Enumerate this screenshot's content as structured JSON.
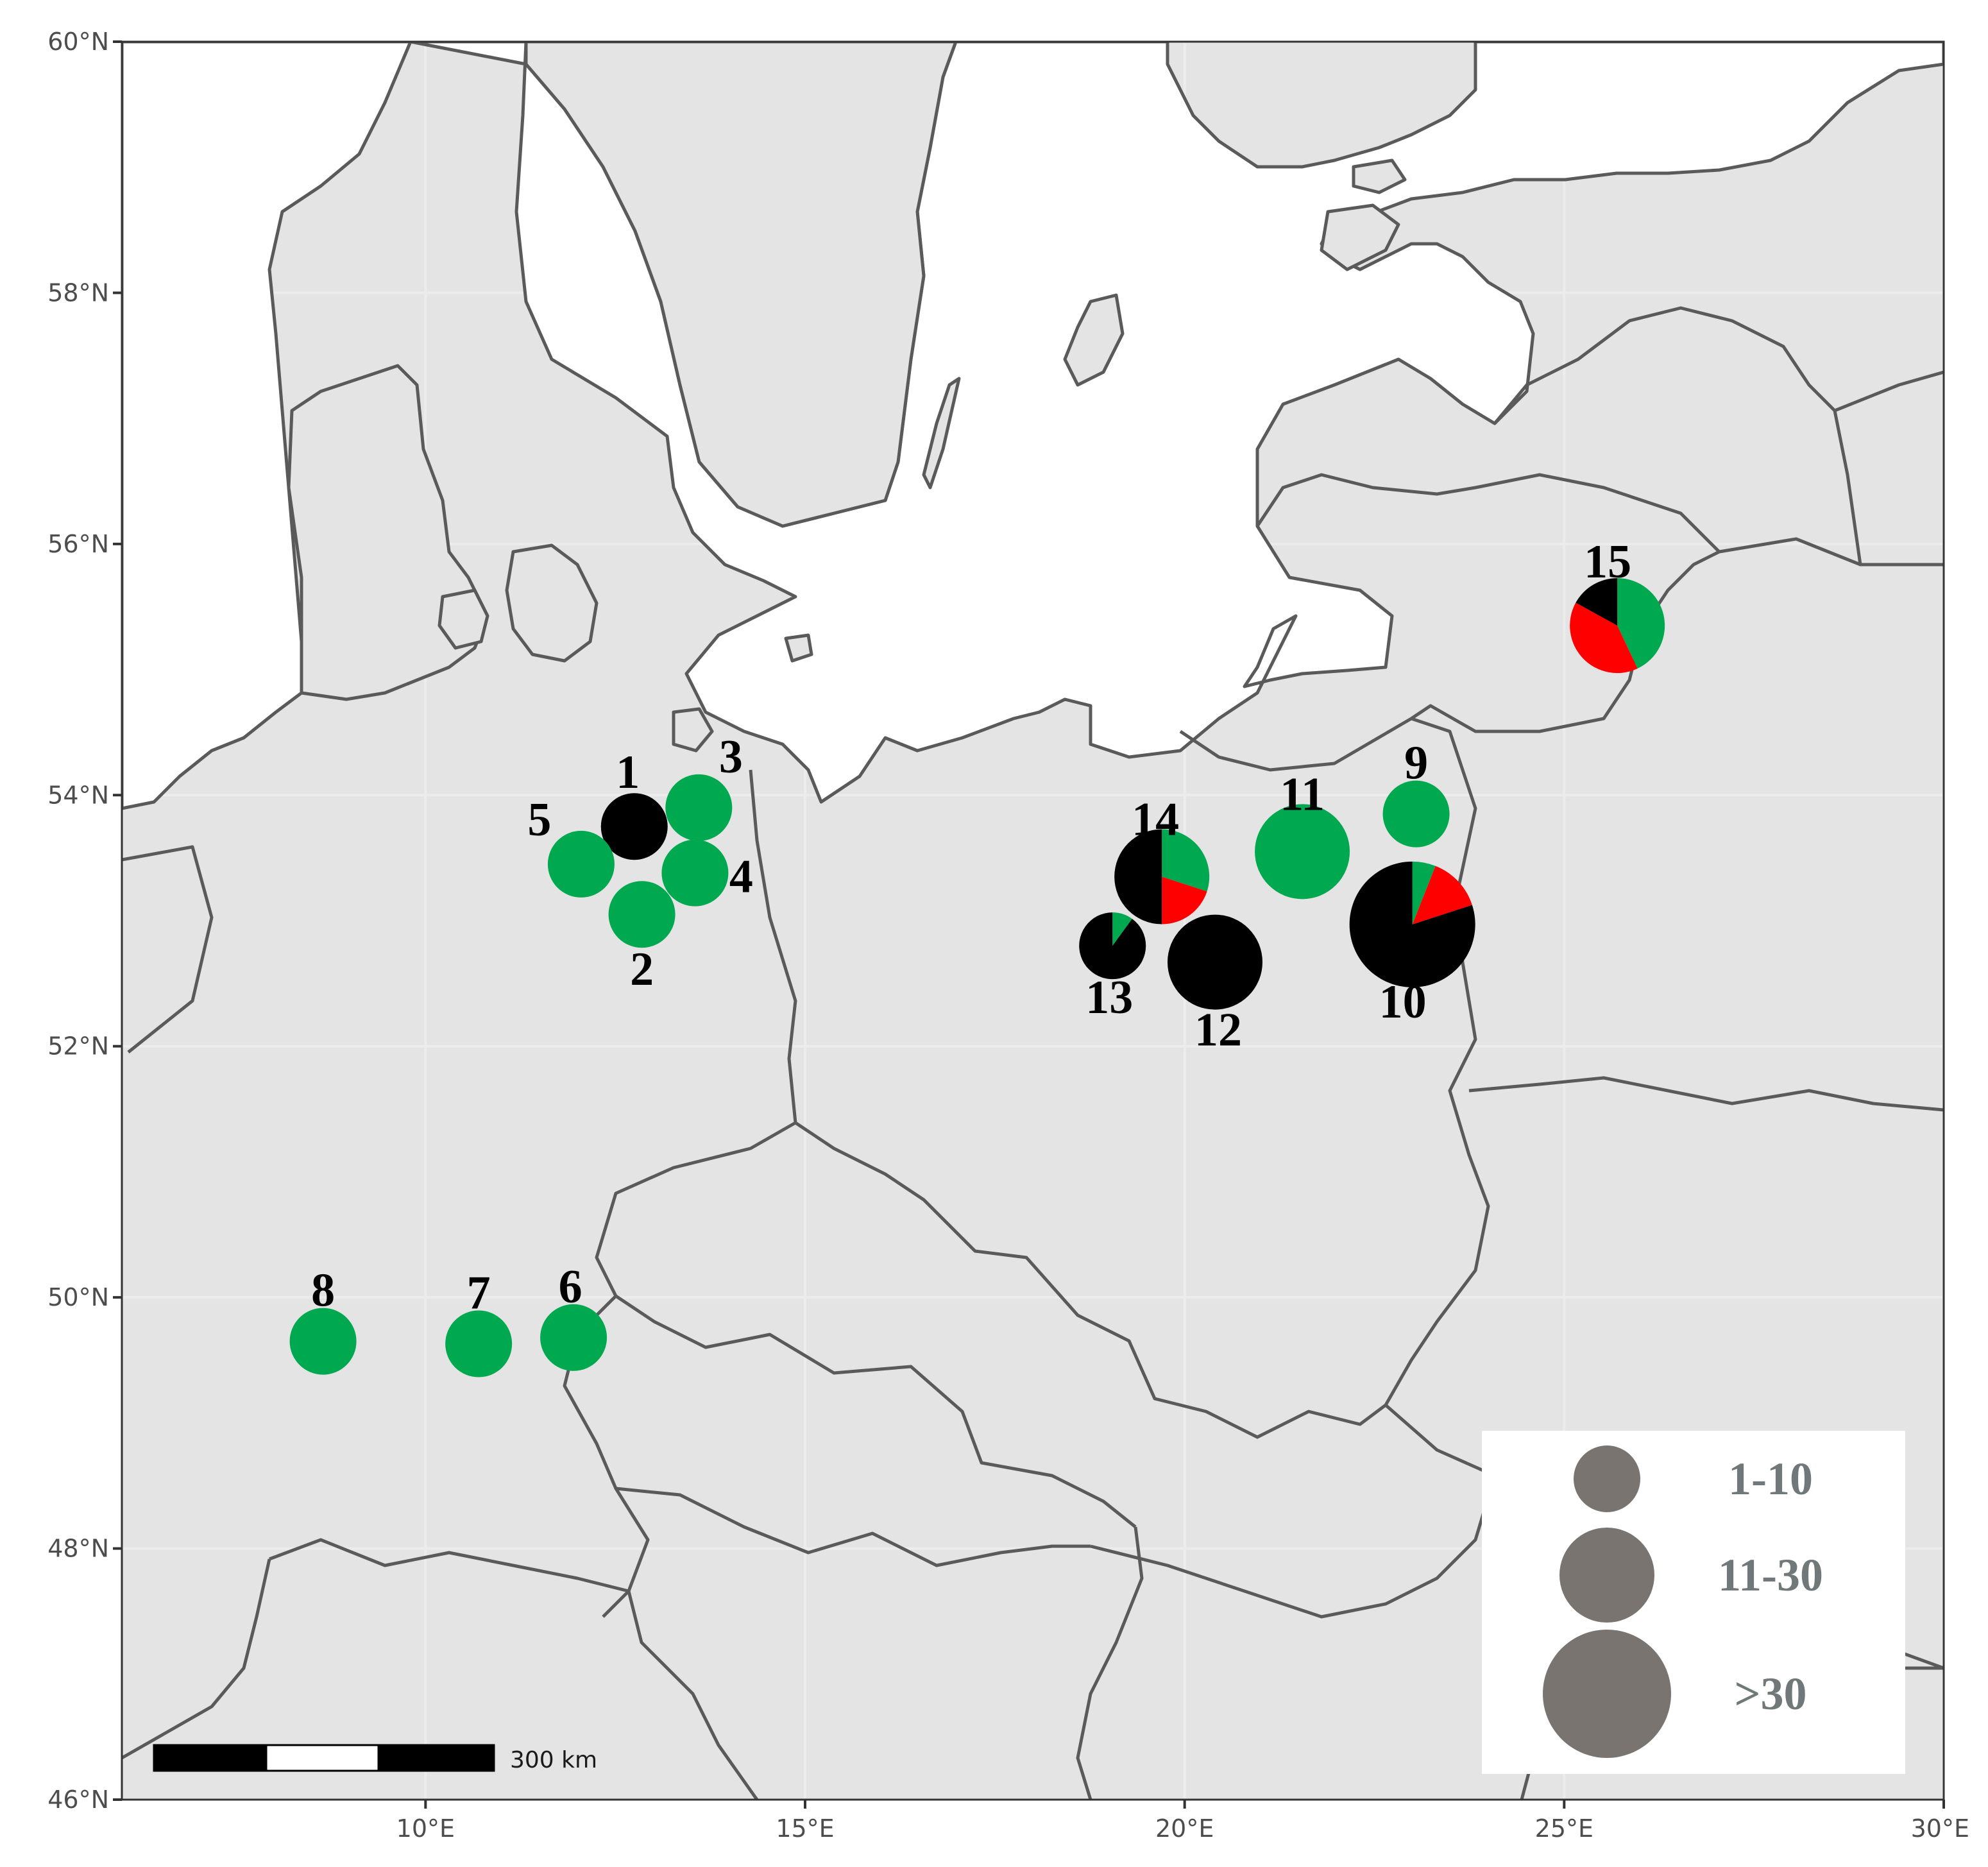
{
  "map": {
    "lat_ticks": [
      "60°N",
      "58°N",
      "56°N",
      "54°N",
      "52°N",
      "50°N",
      "48°N",
      "46°N"
    ],
    "lon_ticks": [
      "10°E",
      "15°E",
      "20°E",
      "25°E",
      "30°E"
    ],
    "lat_range": [
      46,
      60
    ],
    "lon_range": [
      6,
      30
    ],
    "grid": true,
    "colors": {
      "land": "#e4e4e4",
      "sea": "#ffffff",
      "border": "#5a5a5a",
      "grid": "#ebebeb"
    }
  },
  "categories": {
    "green": "#00a84f",
    "red": "#ff0000",
    "black": "#000000"
  },
  "sites": [
    {
      "label": "1",
      "lon": 12.75,
      "lat": 53.75,
      "size_class": "1-10",
      "slices": [
        {
          "color": "black",
          "fraction": 1.0
        }
      ]
    },
    {
      "label": "2",
      "lon": 12.85,
      "lat": 53.05,
      "size_class": "1-10",
      "slices": [
        {
          "color": "green",
          "fraction": 1.0
        }
      ]
    },
    {
      "label": "3",
      "lon": 13.6,
      "lat": 53.9,
      "size_class": "1-10",
      "slices": [
        {
          "color": "green",
          "fraction": 1.0
        }
      ]
    },
    {
      "label": "4",
      "lon": 13.55,
      "lat": 53.38,
      "size_class": "1-10",
      "slices": [
        {
          "color": "green",
          "fraction": 1.0
        }
      ]
    },
    {
      "label": "5",
      "lon": 12.05,
      "lat": 53.45,
      "size_class": "1-10",
      "slices": [
        {
          "color": "green",
          "fraction": 1.0
        }
      ]
    },
    {
      "label": "6",
      "lon": 11.95,
      "lat": 49.68,
      "size_class": "1-10",
      "slices": [
        {
          "color": "green",
          "fraction": 1.0
        }
      ]
    },
    {
      "label": "7",
      "lon": 10.7,
      "lat": 49.63,
      "size_class": "1-10",
      "slices": [
        {
          "color": "green",
          "fraction": 1.0
        }
      ]
    },
    {
      "label": "8",
      "lon": 8.65,
      "lat": 49.65,
      "size_class": "1-10",
      "slices": [
        {
          "color": "green",
          "fraction": 1.0
        }
      ]
    },
    {
      "label": "9",
      "lon": 23.05,
      "lat": 53.85,
      "size_class": "1-10",
      "slices": [
        {
          "color": "green",
          "fraction": 1.0
        }
      ]
    },
    {
      "label": "10",
      "lon": 23.0,
      "lat": 52.97,
      "size_class": ">30",
      "slices": [
        {
          "color": "green",
          "fraction": 0.06
        },
        {
          "color": "red",
          "fraction": 0.14
        },
        {
          "color": "black",
          "fraction": 0.8
        }
      ]
    },
    {
      "label": "11",
      "lon": 21.55,
      "lat": 53.55,
      "size_class": "11-30",
      "slices": [
        {
          "color": "green",
          "fraction": 1.0
        }
      ]
    },
    {
      "label": "12",
      "lon": 20.4,
      "lat": 52.67,
      "size_class": "11-30",
      "slices": [
        {
          "color": "black",
          "fraction": 1.0
        }
      ]
    },
    {
      "label": "13",
      "lon": 19.05,
      "lat": 52.8,
      "size_class": "1-10",
      "slices": [
        {
          "color": "green",
          "fraction": 0.1
        },
        {
          "color": "black",
          "fraction": 0.9
        }
      ]
    },
    {
      "label": "14",
      "lon": 19.7,
      "lat": 53.35,
      "size_class": "11-30",
      "slices": [
        {
          "color": "green",
          "fraction": 0.3
        },
        {
          "color": "red",
          "fraction": 0.2
        },
        {
          "color": "black",
          "fraction": 0.5
        }
      ]
    },
    {
      "label": "15",
      "lon": 25.7,
      "lat": 55.35,
      "size_class": "11-30",
      "slices": [
        {
          "color": "green",
          "fraction": 0.43
        },
        {
          "color": "red",
          "fraction": 0.4
        },
        {
          "color": "black",
          "fraction": 0.17
        }
      ]
    }
  ],
  "legend": {
    "placement": "bottom-right",
    "color": "#7a7470",
    "items": [
      {
        "label": "1-10",
        "size_class": "1-10"
      },
      {
        "label": "11-30",
        "size_class": "11-30"
      },
      {
        "label": ">30",
        "size_class": ">30"
      }
    ]
  },
  "scale_bar": {
    "label": "300 km",
    "segments": 3
  }
}
